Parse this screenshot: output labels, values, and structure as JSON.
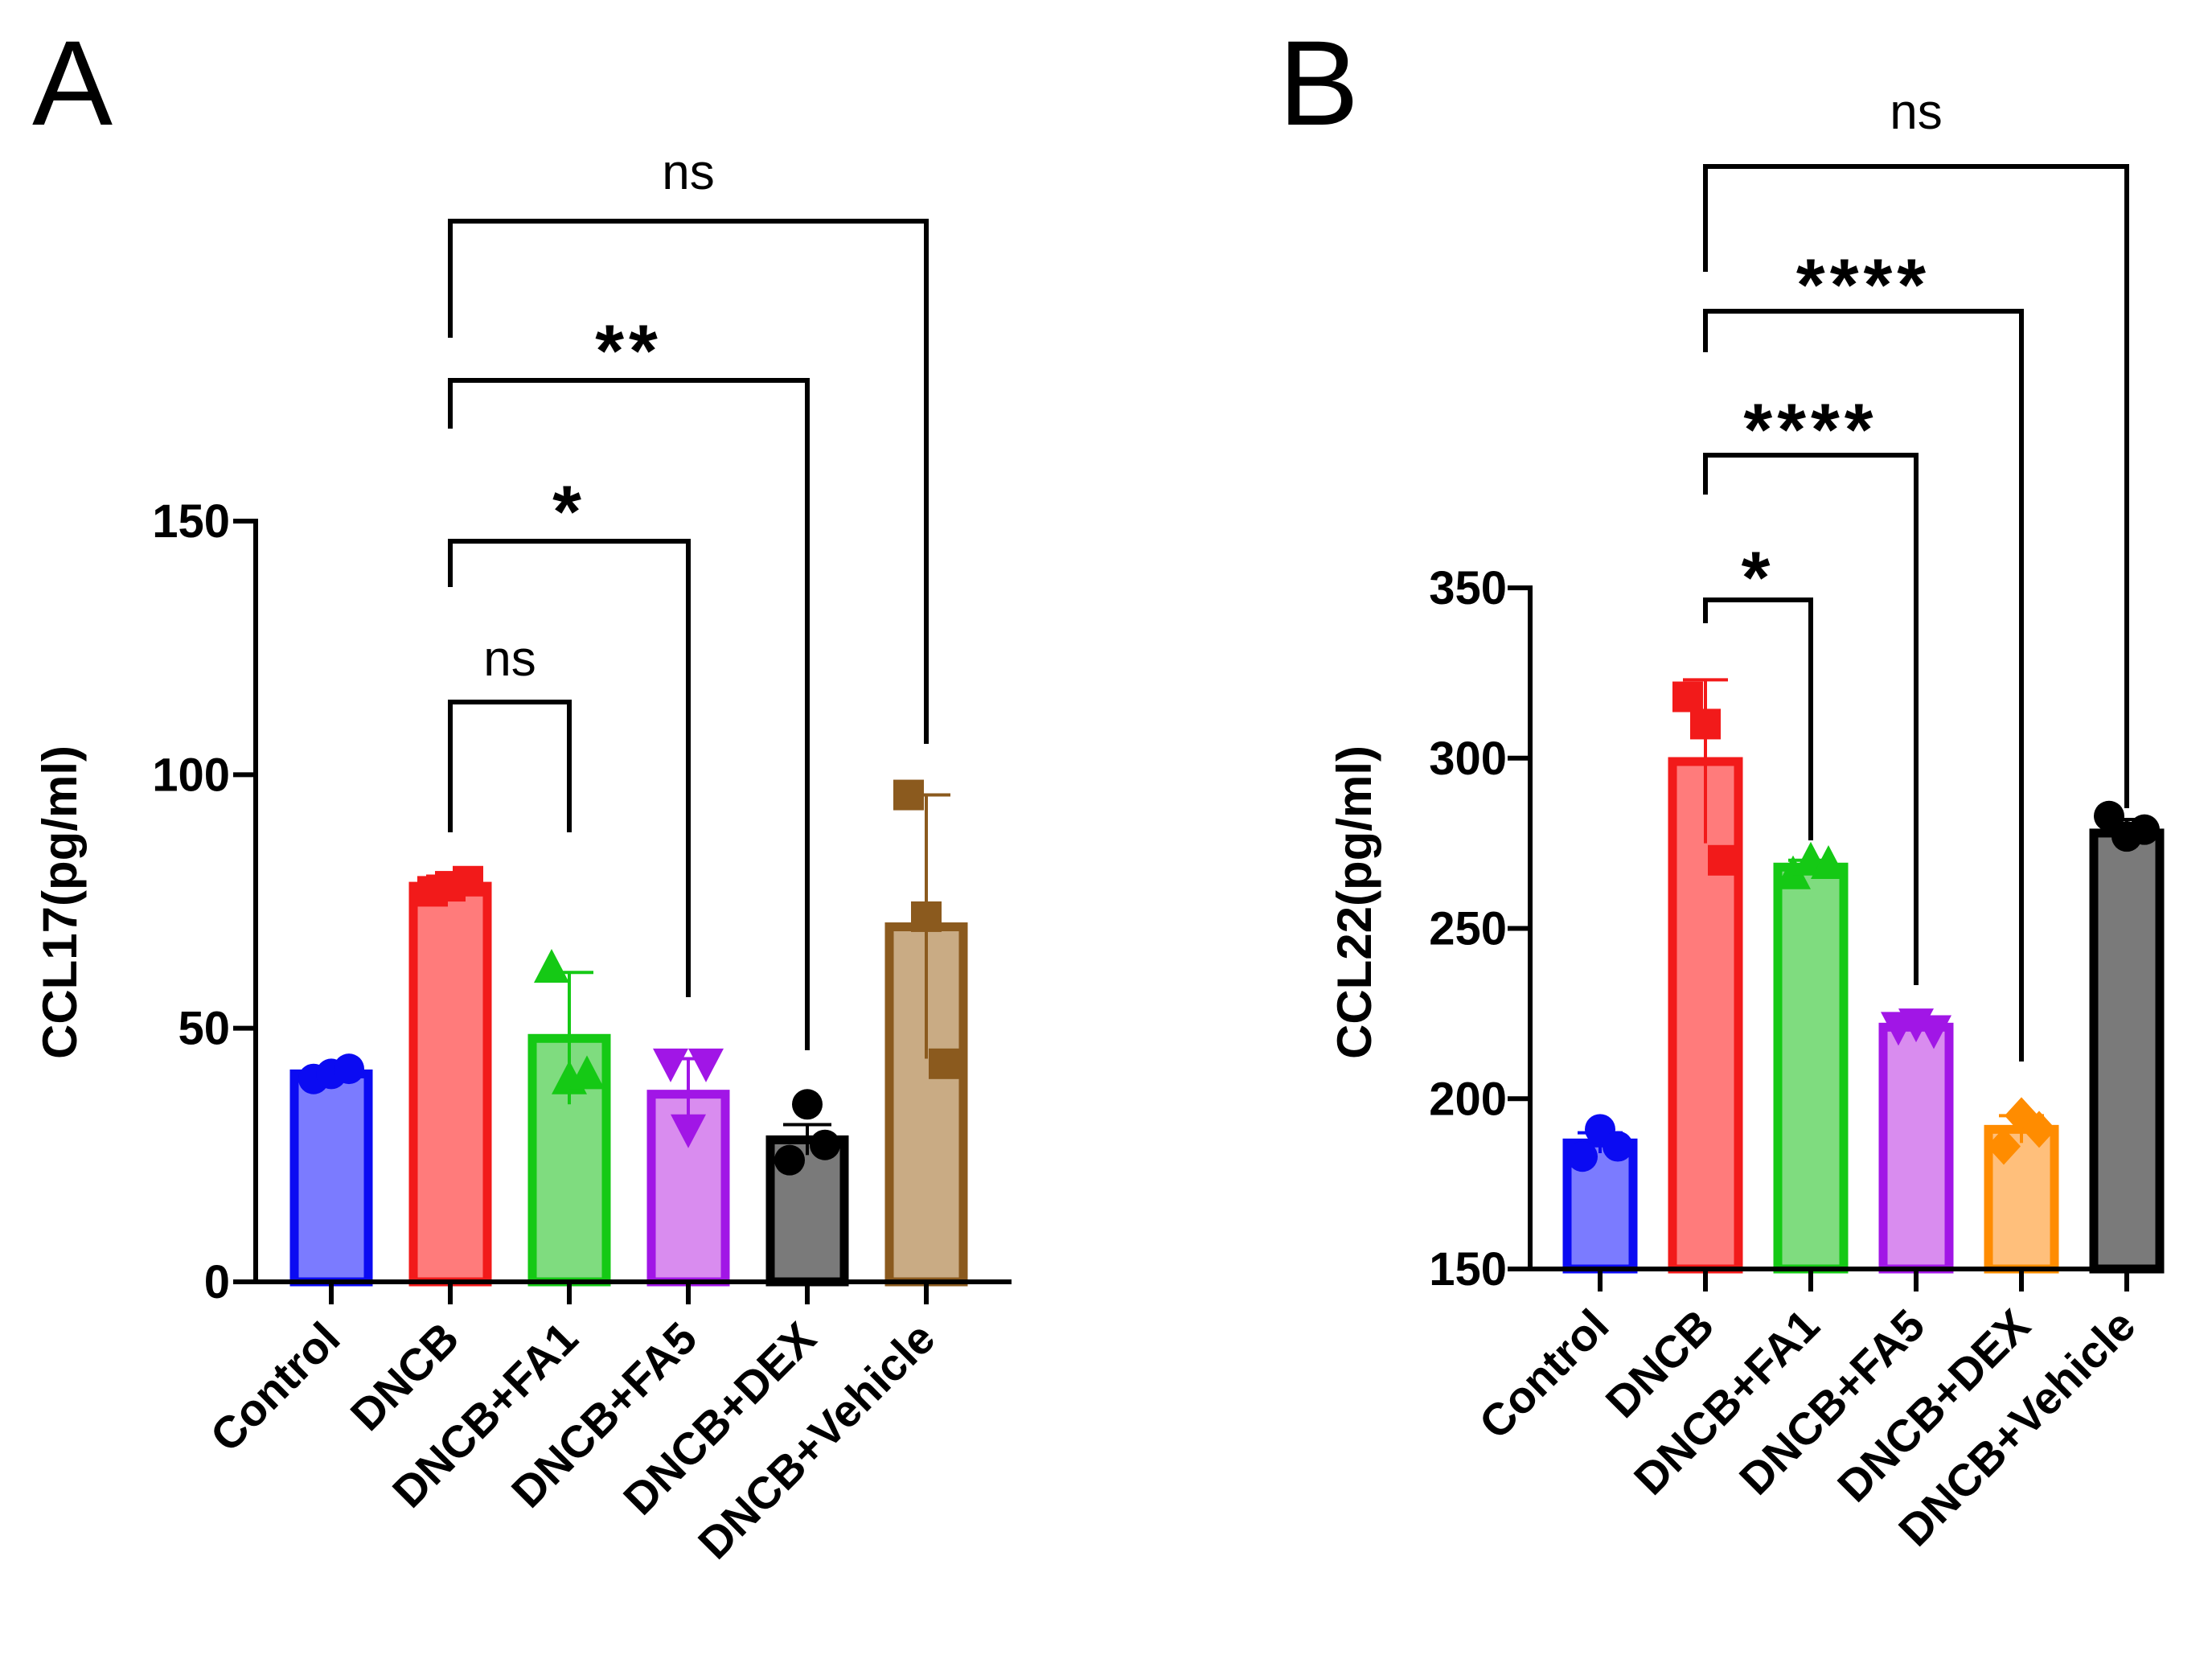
{
  "chart_data": [
    {
      "type": "bar",
      "panel_label": "A",
      "ylabel": "CCL17(pg/ml)",
      "ylim": [
        0,
        150
      ],
      "yticks": [
        0,
        50,
        100,
        150
      ],
      "grid": false,
      "categories": [
        "Control",
        "DNCB",
        "DNCB+FA1",
        "DNCB+FA5",
        "DNCB+DEX",
        "DNCB+Vehicle"
      ],
      "values": [
        41,
        78,
        48,
        37,
        28,
        70
      ],
      "errors": [
        1,
        2,
        13,
        7,
        3,
        26
      ],
      "points": [
        [
          40,
          41,
          42
        ],
        [
          77,
          78,
          79
        ],
        [
          62,
          40,
          41
        ],
        [
          43,
          30,
          43
        ],
        [
          24,
          35,
          27
        ],
        [
          96,
          72,
          43
        ]
      ],
      "markers": [
        "circle",
        "square",
        "triangle-up",
        "triangle-down",
        "circle",
        "square"
      ],
      "colors": {
        "stroke": [
          "#0b0bf2",
          "#f21a1a",
          "#15c915",
          "#a116e6",
          "#000000",
          "#8b5a1e"
        ],
        "fill": [
          "#7b7bff",
          "#ff7b7b",
          "#7fdc7f",
          "#d98cef",
          "#7a7a7a",
          "#c9ab84"
        ]
      },
      "comparisons": [
        {
          "from": "DNCB",
          "to": "DNCB+FA1",
          "label": "ns"
        },
        {
          "from": "DNCB",
          "to": "DNCB+FA5",
          "label": "*"
        },
        {
          "from": "DNCB",
          "to": "DNCB+DEX",
          "label": "**"
        },
        {
          "from": "DNCB",
          "to": "DNCB+Vehicle",
          "label": "ns"
        }
      ]
    },
    {
      "type": "bar",
      "panel_label": "B",
      "ylabel": "CCL22(pg/ml)",
      "ylim": [
        150,
        350
      ],
      "yticks": [
        150,
        200,
        250,
        300,
        350
      ],
      "grid": false,
      "categories": [
        "Control",
        "DNCB",
        "DNCB+FA1",
        "DNCB+FA5",
        "DNCB+DEX",
        "DNCB+Vehicle"
      ],
      "values": [
        187,
        299,
        268,
        221,
        191,
        278
      ],
      "errors": [
        3,
        24,
        2,
        1,
        4,
        4
      ],
      "points": [
        [
          183,
          191,
          186
        ],
        [
          318,
          310,
          270
        ],
        [
          266,
          270,
          269
        ],
        [
          221,
          222,
          220
        ],
        [
          186,
          195,
          191
        ],
        [
          283,
          277,
          279
        ]
      ],
      "markers": [
        "circle",
        "square",
        "triangle-up",
        "triangle-down",
        "diamond",
        "circle"
      ],
      "colors": {
        "stroke": [
          "#0b0bf2",
          "#f21a1a",
          "#15c915",
          "#a116e6",
          "#ff8c00",
          "#000000"
        ],
        "fill": [
          "#7b7bff",
          "#ff7b7b",
          "#7fdc7f",
          "#d98cef",
          "#ffbf7b",
          "#7a7a7a"
        ]
      },
      "comparisons": [
        {
          "from": "DNCB",
          "to": "DNCB+FA1",
          "label": "*"
        },
        {
          "from": "DNCB",
          "to": "DNCB+FA5",
          "label": "****"
        },
        {
          "from": "DNCB",
          "to": "DNCB+DEX",
          "label": "****"
        },
        {
          "from": "DNCB",
          "to": "DNCB+Vehicle",
          "label": "ns"
        }
      ]
    }
  ]
}
